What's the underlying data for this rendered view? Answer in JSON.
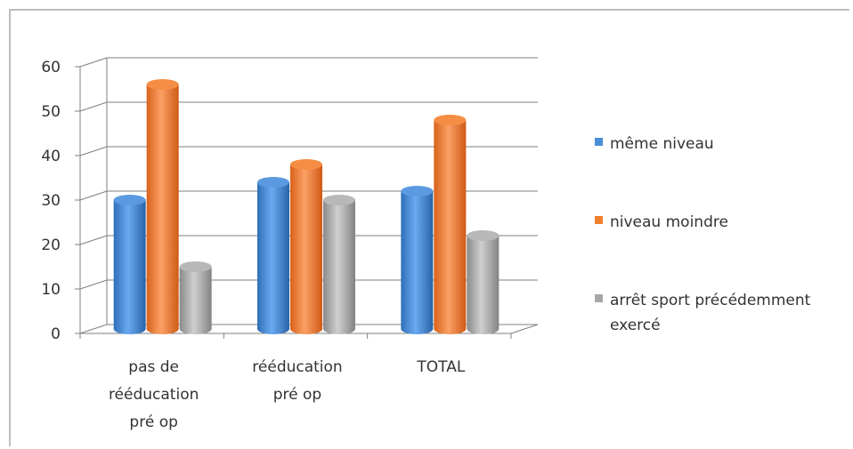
{
  "chart_data": {
    "type": "bar",
    "categories": [
      "pas de rééducation pré op",
      "rééducation pré op",
      "TOTAL"
    ],
    "series": [
      {
        "name": "même niveau",
        "values": [
          29,
          33,
          31
        ],
        "color": "#4a8fd6"
      },
      {
        "name": "niveau moindre",
        "values": [
          55,
          37,
          47
        ],
        "color": "#f07e2c"
      },
      {
        "name": "arrêt sport précédemment exercé",
        "values": [
          14,
          29,
          21
        ],
        "color": "#a7a7a7"
      }
    ],
    "ylim": [
      0,
      60
    ],
    "yticks": [
      0,
      10,
      20,
      30,
      40,
      50,
      60
    ],
    "grid": true,
    "legend": "right"
  }
}
